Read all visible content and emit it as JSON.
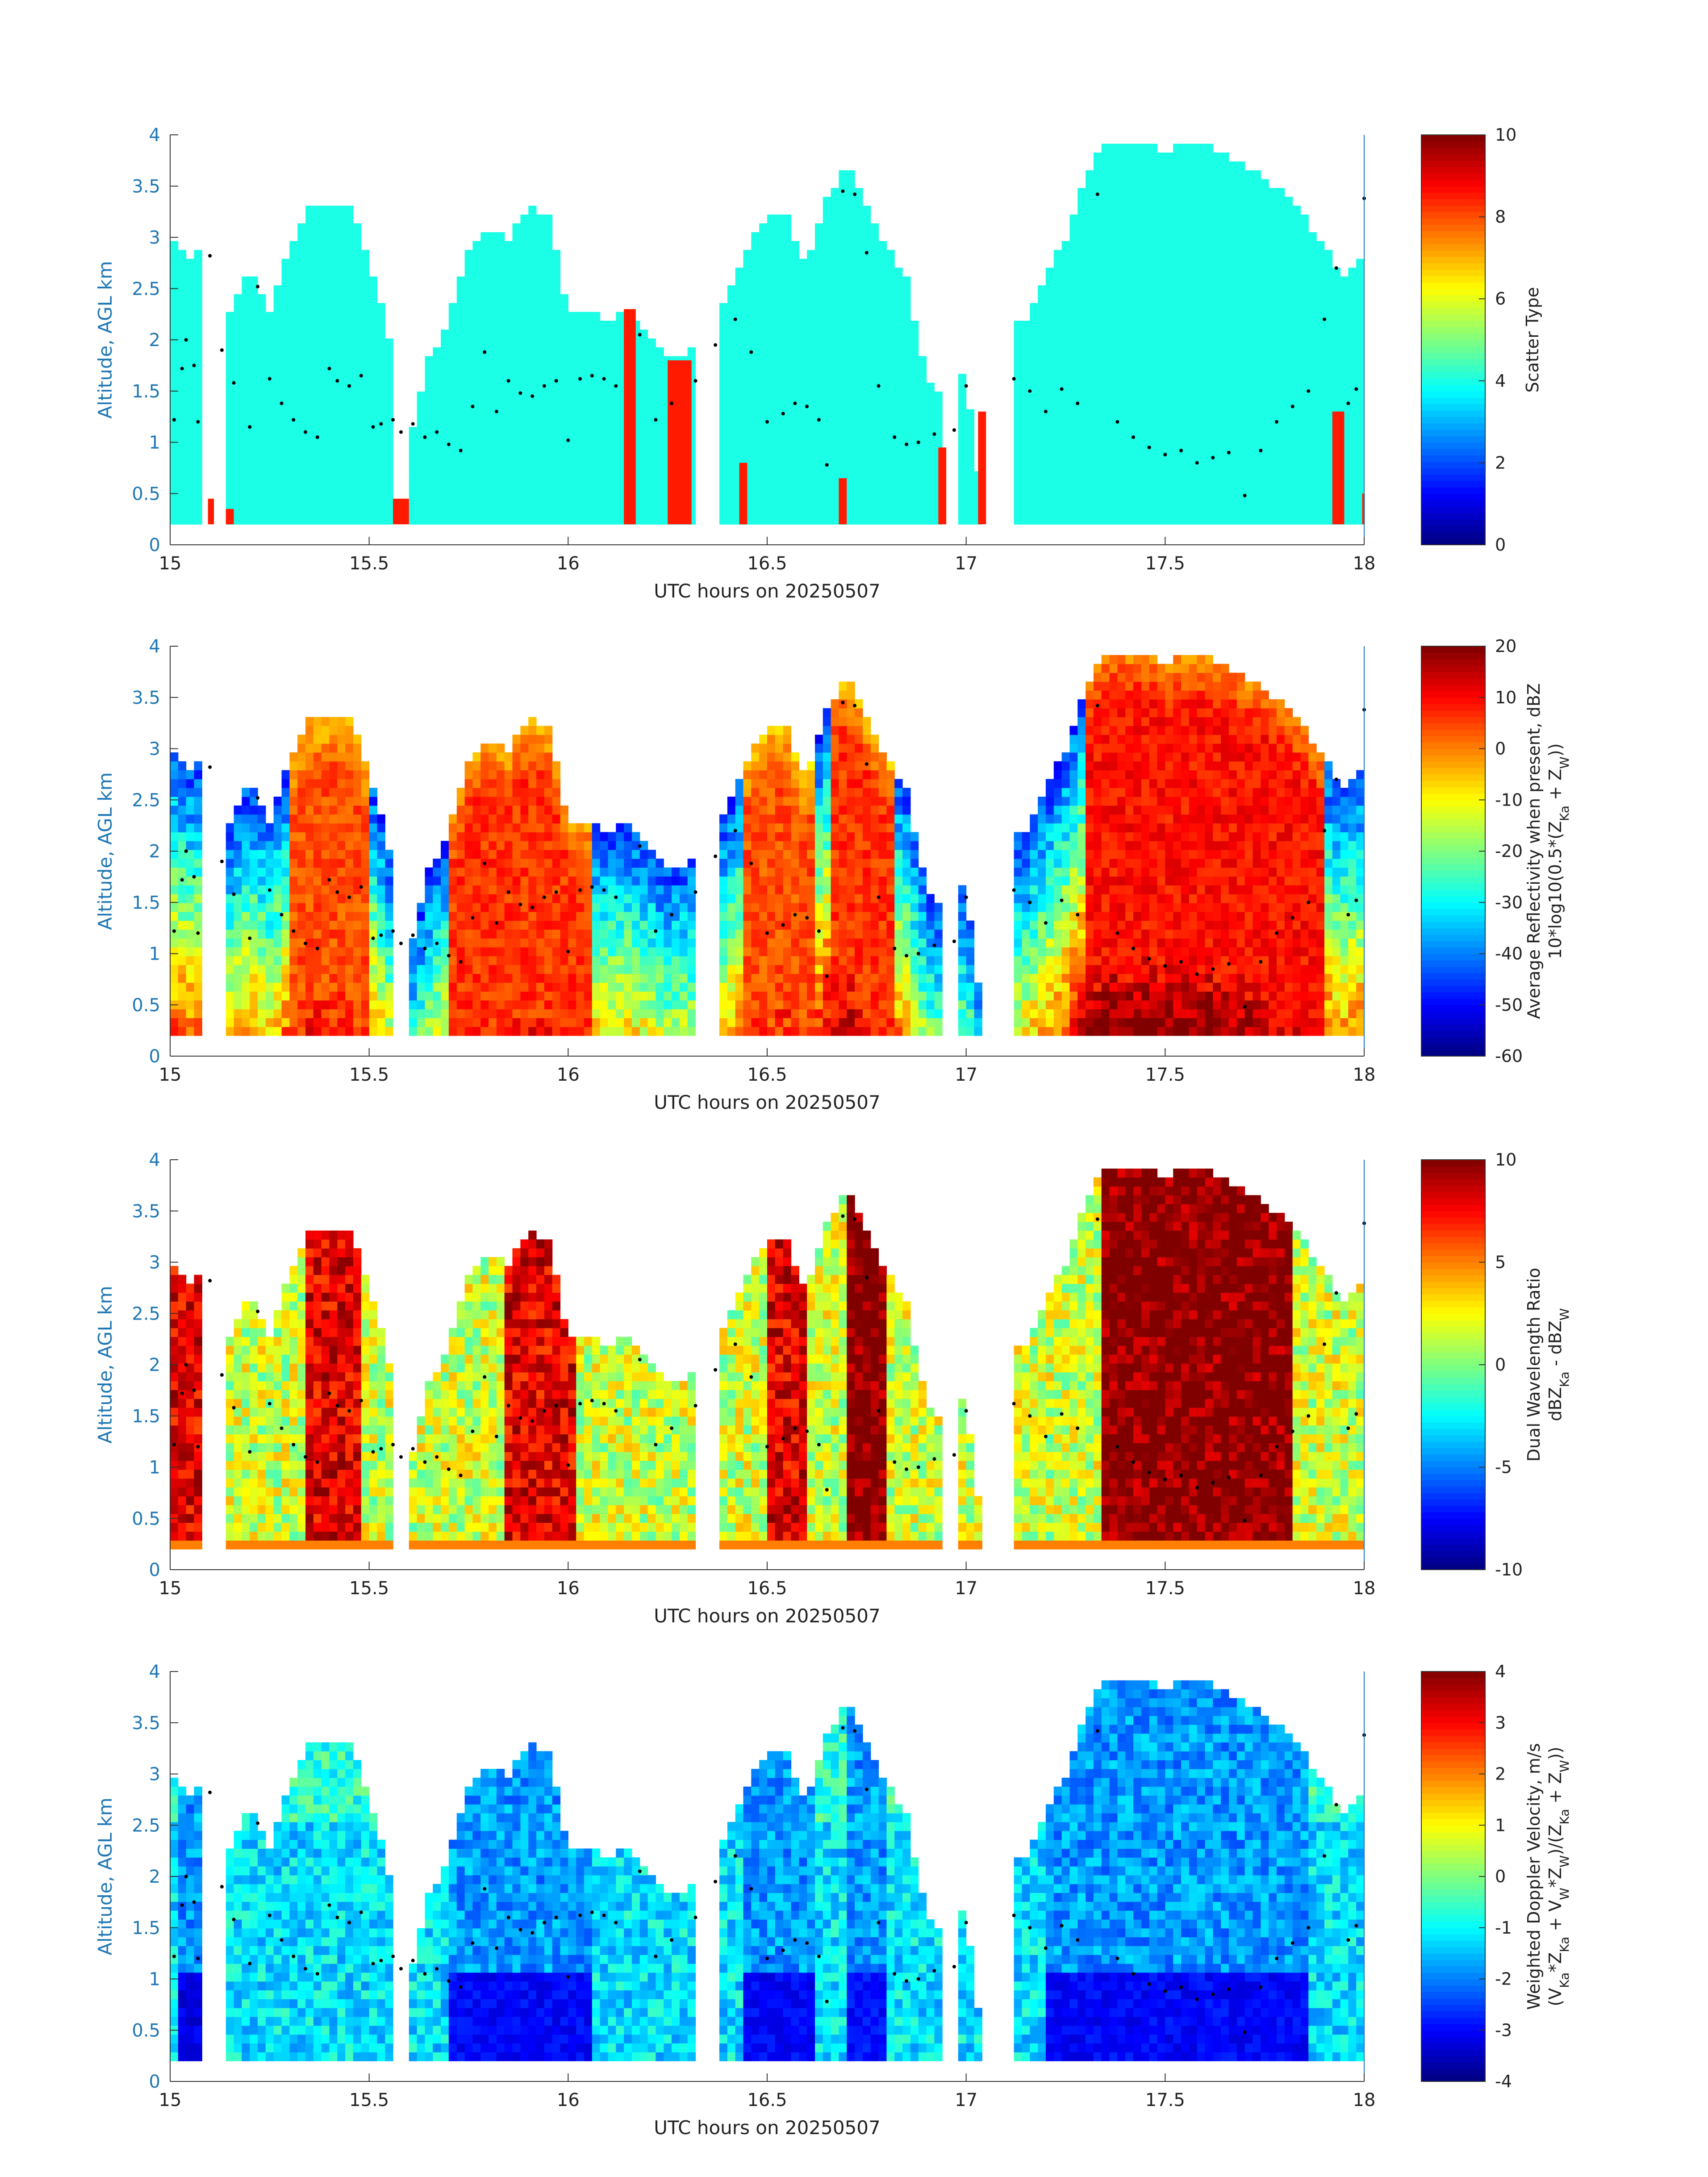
{
  "figure": {
    "background": "#ffffff",
    "colors": {
      "axis_text": "#1f77b4",
      "axis_line": "#333333",
      "station_dots": "#000000",
      "colormap": "jet"
    }
  },
  "chart_data": [
    {
      "type": "heatmap",
      "name": "scatter-type",
      "title": "",
      "xlabel": "UTC hours on 20250507",
      "ylabel": "Altitude, AGL km",
      "xlim": [
        15,
        18
      ],
      "ylim": [
        0,
        4
      ],
      "xticks": [
        "15",
        "15.5",
        "16",
        "16.5",
        "17",
        "17.5",
        "18"
      ],
      "yticks": [
        "0",
        "0.5",
        "1",
        "1.5",
        "2",
        "2.5",
        "3",
        "3.5",
        "4"
      ],
      "colorbar": {
        "label_lines": [
          "Scatter Type"
        ],
        "clim": [
          0,
          10
        ],
        "ticks": [
          "0",
          "2",
          "4",
          "6",
          "8",
          "10"
        ]
      },
      "dominant_value": 4,
      "secondary_value": 8.5,
      "cloud_tops_km": [
        [
          15.0,
          3.0
        ],
        [
          15.05,
          2.8
        ],
        [
          15.1,
          2.9
        ],
        [
          15.15,
          2.3
        ],
        [
          15.2,
          2.7
        ],
        [
          15.25,
          2.3
        ],
        [
          15.3,
          2.9
        ],
        [
          15.35,
          3.3
        ],
        [
          15.4,
          3.3
        ],
        [
          15.45,
          3.3
        ],
        [
          15.5,
          2.8
        ],
        [
          15.55,
          2.0
        ],
        [
          15.6,
          1.0
        ],
        [
          15.65,
          1.8
        ],
        [
          15.7,
          2.2
        ],
        [
          15.75,
          2.9
        ],
        [
          15.8,
          3.1
        ],
        [
          15.85,
          3.0
        ],
        [
          15.9,
          3.3
        ],
        [
          15.95,
          3.2
        ],
        [
          16.0,
          2.3
        ],
        [
          16.05,
          2.3
        ],
        [
          16.1,
          2.2
        ],
        [
          16.15,
          2.3
        ],
        [
          16.2,
          2.1
        ],
        [
          16.25,
          1.8
        ],
        [
          16.3,
          1.9
        ],
        [
          16.35,
          2.0
        ],
        [
          16.4,
          2.4
        ],
        [
          16.45,
          2.9
        ],
        [
          16.5,
          3.2
        ],
        [
          16.55,
          3.2
        ],
        [
          16.6,
          2.7
        ],
        [
          16.65,
          3.4
        ],
        [
          16.7,
          3.7
        ],
        [
          16.75,
          3.3
        ],
        [
          16.8,
          2.9
        ],
        [
          16.85,
          2.6
        ],
        [
          16.9,
          1.6
        ],
        [
          16.95,
          1.4
        ],
        [
          17.0,
          1.7
        ],
        [
          17.05,
          0.0
        ],
        [
          17.1,
          2.1
        ],
        [
          17.15,
          2.2
        ],
        [
          17.2,
          2.6
        ],
        [
          17.25,
          3.0
        ],
        [
          17.3,
          3.6
        ],
        [
          17.35,
          3.95
        ],
        [
          17.4,
          3.95
        ],
        [
          17.45,
          3.95
        ],
        [
          17.5,
          3.85
        ],
        [
          17.55,
          3.9
        ],
        [
          17.6,
          3.9
        ],
        [
          17.65,
          3.8
        ],
        [
          17.7,
          3.7
        ],
        [
          17.75,
          3.6
        ],
        [
          17.8,
          3.4
        ],
        [
          17.85,
          3.2
        ],
        [
          17.9,
          2.9
        ],
        [
          17.95,
          2.6
        ],
        [
          18.0,
          2.8
        ]
      ],
      "cloud_gaps_hours": [
        [
          15.085,
          15.13
        ],
        [
          15.57,
          15.6
        ],
        [
          16.33,
          16.38
        ],
        [
          16.945,
          16.98
        ],
        [
          17.04,
          17.12
        ]
      ],
      "secondary_columns": [
        {
          "t0": 15.095,
          "t1": 15.11,
          "top": 0.45
        },
        {
          "t0": 15.14,
          "t1": 15.16,
          "top": 0.35
        },
        {
          "t0": 15.56,
          "t1": 15.6,
          "top": 0.45
        },
        {
          "t0": 16.14,
          "t1": 16.17,
          "top": 2.3
        },
        {
          "t0": 16.25,
          "t1": 16.31,
          "top": 1.8
        },
        {
          "t0": 16.43,
          "t1": 16.45,
          "top": 0.8
        },
        {
          "t0": 16.68,
          "t1": 16.7,
          "top": 0.65
        },
        {
          "t0": 16.93,
          "t1": 16.95,
          "top": 0.95
        },
        {
          "t0": 17.03,
          "t1": 17.05,
          "top": 1.3
        },
        {
          "t0": 17.92,
          "t1": 17.95,
          "top": 1.3
        },
        {
          "t0": 17.995,
          "t1": 18.0,
          "top": 0.5
        }
      ]
    },
    {
      "type": "heatmap",
      "name": "average-reflectivity",
      "title": "",
      "xlabel": "UTC hours on 20250507",
      "ylabel": "Altitude, AGL km",
      "xlim": [
        15,
        18
      ],
      "ylim": [
        0,
        4
      ],
      "xticks": [
        "15",
        "15.5",
        "16",
        "16.5",
        "17",
        "17.5",
        "18"
      ],
      "yticks": [
        "0",
        "0.5",
        "1",
        "1.5",
        "2",
        "2.5",
        "3",
        "3.5",
        "4"
      ],
      "colorbar": {
        "label_lines": [
          "Average Reflectivity when present, dBZ",
          "10*log10(0.5*(Z",
          "Ka",
          " + Z",
          "W",
          "))"
        ],
        "clim": [
          -60,
          20
        ],
        "ticks": [
          "-60",
          "-50",
          "-40",
          "-30",
          "-20",
          "-10",
          "0",
          "10",
          "20"
        ]
      },
      "core_columns": [
        {
          "t0": 15.3,
          "t1": 15.5,
          "peak": 10
        },
        {
          "t0": 15.7,
          "t1": 16.05,
          "peak": 12
        },
        {
          "t0": 16.45,
          "t1": 16.62,
          "peak": 10
        },
        {
          "t0": 16.66,
          "t1": 16.82,
          "peak": 12
        },
        {
          "t0": 17.3,
          "t1": 17.9,
          "peak": 15
        }
      ]
    },
    {
      "type": "heatmap",
      "name": "dual-wavelength-ratio",
      "title": "",
      "xlabel": "UTC hours on 20250507",
      "ylabel": "Altitude, AGL km",
      "xlim": [
        15,
        18
      ],
      "ylim": [
        0,
        4
      ],
      "xticks": [
        "15",
        "15.5",
        "16",
        "16.5",
        "17",
        "17.5",
        "18"
      ],
      "yticks": [
        "0",
        "0.5",
        "1",
        "1.5",
        "2",
        "2.5",
        "3",
        "3.5",
        "4"
      ],
      "colorbar": {
        "label_lines": [
          "Dual Wavelength Ratio",
          "dBZ",
          "Ka",
          " - dBZ",
          "W"
        ],
        "clim": [
          -10,
          10
        ],
        "ticks": [
          "-10",
          "-5",
          "0",
          "5",
          "10"
        ]
      },
      "core_columns": [
        {
          "t0": 15.0,
          "t1": 15.08,
          "peak": 8
        },
        {
          "t0": 15.35,
          "t1": 15.48,
          "peak": 8
        },
        {
          "t0": 15.85,
          "t1": 16.02,
          "peak": 8
        },
        {
          "t0": 16.5,
          "t1": 16.6,
          "peak": 8
        },
        {
          "t0": 16.7,
          "t1": 16.8,
          "peak": 10
        },
        {
          "t0": 17.35,
          "t1": 17.82,
          "peak": 10
        }
      ]
    },
    {
      "type": "heatmap",
      "name": "weighted-doppler-velocity",
      "title": "",
      "xlabel": "UTC hours on 20250507",
      "ylabel": "Altitude, AGL km",
      "xlim": [
        15,
        18
      ],
      "ylim": [
        0,
        4
      ],
      "xticks": [
        "15",
        "15.5",
        "16",
        "16.5",
        "17",
        "17.5",
        "18"
      ],
      "yticks": [
        "0",
        "0.5",
        "1",
        "1.5",
        "2",
        "2.5",
        "3",
        "3.5",
        "4"
      ],
      "colorbar": {
        "label_lines": [
          "Weighted Doppler Velocity, m/s",
          "(V",
          "Ka",
          "*Z",
          "Ka",
          " + V",
          "W",
          "*Z",
          "W",
          ")/(Z",
          "Ka",
          " + Z",
          "W",
          "))"
        ],
        "clim": [
          -4,
          4
        ],
        "ticks": [
          "-4",
          "-3",
          "-2",
          "-1",
          "0",
          "1",
          "2",
          "3",
          "4"
        ]
      },
      "core_columns": [
        {
          "t0": 15.03,
          "t1": 15.09,
          "peak": -3.5
        },
        {
          "t0": 15.7,
          "t1": 16.05,
          "peak": -3.3
        },
        {
          "t0": 16.45,
          "t1": 16.62,
          "peak": -3.3
        },
        {
          "t0": 16.7,
          "t1": 16.8,
          "peak": -3.2
        },
        {
          "t0": 17.2,
          "t1": 17.85,
          "peak": -3.3
        }
      ]
    }
  ],
  "marker_points": [
    [
      15.01,
      1.22
    ],
    [
      15.03,
      1.72
    ],
    [
      15.04,
      2.0
    ],
    [
      15.06,
      1.75
    ],
    [
      15.07,
      1.2
    ],
    [
      15.1,
      2.82
    ],
    [
      15.13,
      1.9
    ],
    [
      15.16,
      1.58
    ],
    [
      15.2,
      1.15
    ],
    [
      15.22,
      2.52
    ],
    [
      15.25,
      1.62
    ],
    [
      15.28,
      1.38
    ],
    [
      15.31,
      1.22
    ],
    [
      15.34,
      1.1
    ],
    [
      15.37,
      1.05
    ],
    [
      15.4,
      1.72
    ],
    [
      15.42,
      1.6
    ],
    [
      15.45,
      1.55
    ],
    [
      15.48,
      1.65
    ],
    [
      15.51,
      1.15
    ],
    [
      15.53,
      1.18
    ],
    [
      15.56,
      1.22
    ],
    [
      15.58,
      1.1
    ],
    [
      15.61,
      1.18
    ],
    [
      15.64,
      1.05
    ],
    [
      15.67,
      1.1
    ],
    [
      15.7,
      0.98
    ],
    [
      15.73,
      0.92
    ],
    [
      15.76,
      1.35
    ],
    [
      15.79,
      1.88
    ],
    [
      15.82,
      1.3
    ],
    [
      15.85,
      1.6
    ],
    [
      15.88,
      1.48
    ],
    [
      15.91,
      1.45
    ],
    [
      15.94,
      1.55
    ],
    [
      15.97,
      1.6
    ],
    [
      16.0,
      1.02
    ],
    [
      16.03,
      1.62
    ],
    [
      16.06,
      1.65
    ],
    [
      16.09,
      1.62
    ],
    [
      16.12,
      1.55
    ],
    [
      16.18,
      2.05
    ],
    [
      16.22,
      1.22
    ],
    [
      16.26,
      1.38
    ],
    [
      16.32,
      1.6
    ],
    [
      16.37,
      1.95
    ],
    [
      16.42,
      2.2
    ],
    [
      16.46,
      1.88
    ],
    [
      16.5,
      1.2
    ],
    [
      16.54,
      1.28
    ],
    [
      16.57,
      1.38
    ],
    [
      16.6,
      1.35
    ],
    [
      16.63,
      1.22
    ],
    [
      16.65,
      0.78
    ],
    [
      16.69,
      3.45
    ],
    [
      16.72,
      3.42
    ],
    [
      16.75,
      2.85
    ],
    [
      16.78,
      1.55
    ],
    [
      16.82,
      1.05
    ],
    [
      16.85,
      0.98
    ],
    [
      16.88,
      1.0
    ],
    [
      16.92,
      1.08
    ],
    [
      16.97,
      1.12
    ],
    [
      17.0,
      1.55
    ],
    [
      17.12,
      1.62
    ],
    [
      17.16,
      1.5
    ],
    [
      17.2,
      1.3
    ],
    [
      17.24,
      1.52
    ],
    [
      17.28,
      1.38
    ],
    [
      17.33,
      3.42
    ],
    [
      17.38,
      1.2
    ],
    [
      17.42,
      1.05
    ],
    [
      17.46,
      0.95
    ],
    [
      17.5,
      0.88
    ],
    [
      17.54,
      0.92
    ],
    [
      17.58,
      0.8
    ],
    [
      17.62,
      0.85
    ],
    [
      17.66,
      0.9
    ],
    [
      17.7,
      0.48
    ],
    [
      17.74,
      0.92
    ],
    [
      17.78,
      1.2
    ],
    [
      17.82,
      1.35
    ],
    [
      17.86,
      1.5
    ],
    [
      17.9,
      2.2
    ],
    [
      17.93,
      2.7
    ],
    [
      17.96,
      1.38
    ],
    [
      17.98,
      1.52
    ],
    [
      18.0,
      3.38
    ]
  ]
}
